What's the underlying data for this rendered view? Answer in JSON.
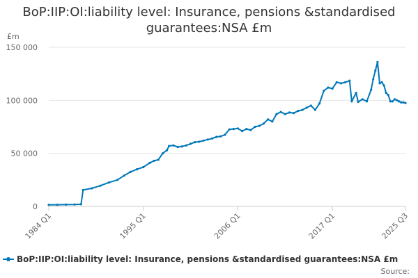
{
  "chart_data": {
    "type": "line",
    "title_lines": [
      "BoP:IIP:OI:liability level: Insurance, pensions &standardised",
      "guarantees:NSA £m"
    ],
    "unit_label": "£m",
    "ylim": [
      0,
      150000
    ],
    "y_ticks": [
      {
        "value": 0,
        "label": "0"
      },
      {
        "value": 50000,
        "label": "50 000"
      },
      {
        "value": 100000,
        "label": "100 000"
      },
      {
        "value": 150000,
        "label": "150 000"
      }
    ],
    "xlim": [
      1984.0,
      2025.5
    ],
    "x_ticks": [
      {
        "value": 1984.0,
        "label": "1984 Q1"
      },
      {
        "value": 1995.0,
        "label": "1995 Q1"
      },
      {
        "value": 2006.0,
        "label": "2006 Q1"
      },
      {
        "value": 2017.0,
        "label": "2017 Q1"
      },
      {
        "value": 2025.5,
        "label": "2025 Q3"
      }
    ],
    "grid": true,
    "legend_position": "bottom",
    "series": [
      {
        "name": "BoP:IIP:OI:liability level: Insurance, pensions &standardised guarantees:NSA £m",
        "color": "#0077b8",
        "points": [
          [
            1984.0,
            1500
          ],
          [
            1985.0,
            1600
          ],
          [
            1986.0,
            1700
          ],
          [
            1987.0,
            1800
          ],
          [
            1987.75,
            2000
          ],
          [
            1988.0,
            15500
          ],
          [
            1989.0,
            17000
          ],
          [
            1990.0,
            19500
          ],
          [
            1991.0,
            22500
          ],
          [
            1992.0,
            25000
          ],
          [
            1992.75,
            29000
          ],
          [
            1993.5,
            32500
          ],
          [
            1994.25,
            35000
          ],
          [
            1995.0,
            37000
          ],
          [
            1995.75,
            41000
          ],
          [
            1996.25,
            43000
          ],
          [
            1996.75,
            44000
          ],
          [
            1997.25,
            50000
          ],
          [
            1997.75,
            53000
          ],
          [
            1998.0,
            57000
          ],
          [
            1998.5,
            57500
          ],
          [
            1999.0,
            56000
          ],
          [
            1999.5,
            56500
          ],
          [
            2000.0,
            57500
          ],
          [
            2000.5,
            59000
          ],
          [
            2001.0,
            60500
          ],
          [
            2001.5,
            61000
          ],
          [
            2002.0,
            62000
          ],
          [
            2002.5,
            63000
          ],
          [
            2003.0,
            64000
          ],
          [
            2003.5,
            65500
          ],
          [
            2004.0,
            66000
          ],
          [
            2004.5,
            67500
          ],
          [
            2005.0,
            72500
          ],
          [
            2005.5,
            73000
          ],
          [
            2006.0,
            73500
          ],
          [
            2006.5,
            71000
          ],
          [
            2007.0,
            73000
          ],
          [
            2007.5,
            72000
          ],
          [
            2008.0,
            75000
          ],
          [
            2008.5,
            76000
          ],
          [
            2009.0,
            78000
          ],
          [
            2009.5,
            82000
          ],
          [
            2010.0,
            80000
          ],
          [
            2010.5,
            87000
          ],
          [
            2011.0,
            89000
          ],
          [
            2011.5,
            87000
          ],
          [
            2012.0,
            88500
          ],
          [
            2012.5,
            88000
          ],
          [
            2013.0,
            90000
          ],
          [
            2013.5,
            91000
          ],
          [
            2014.0,
            93000
          ],
          [
            2014.5,
            95000
          ],
          [
            2015.0,
            91000
          ],
          [
            2015.5,
            97000
          ],
          [
            2016.0,
            109000
          ],
          [
            2016.5,
            112000
          ],
          [
            2017.0,
            111000
          ],
          [
            2017.5,
            117000
          ],
          [
            2018.0,
            116000
          ],
          [
            2018.5,
            117000
          ],
          [
            2019.0,
            118500
          ],
          [
            2019.25,
            99000
          ],
          [
            2019.75,
            107000
          ],
          [
            2020.0,
            98500
          ],
          [
            2020.5,
            101000
          ],
          [
            2021.0,
            99000
          ],
          [
            2021.5,
            110000
          ],
          [
            2021.75,
            120000
          ],
          [
            2022.0,
            128000
          ],
          [
            2022.25,
            136000
          ],
          [
            2022.5,
            116000
          ],
          [
            2022.75,
            117000
          ],
          [
            2023.0,
            114000
          ],
          [
            2023.25,
            107000
          ],
          [
            2023.5,
            105000
          ],
          [
            2023.75,
            99000
          ],
          [
            2024.0,
            99000
          ],
          [
            2024.25,
            101000
          ],
          [
            2024.5,
            100000
          ],
          [
            2024.75,
            99000
          ],
          [
            2025.0,
            98000
          ],
          [
            2025.25,
            98000
          ],
          [
            2025.5,
            97500
          ]
        ]
      }
    ],
    "source_label": "Source:"
  }
}
